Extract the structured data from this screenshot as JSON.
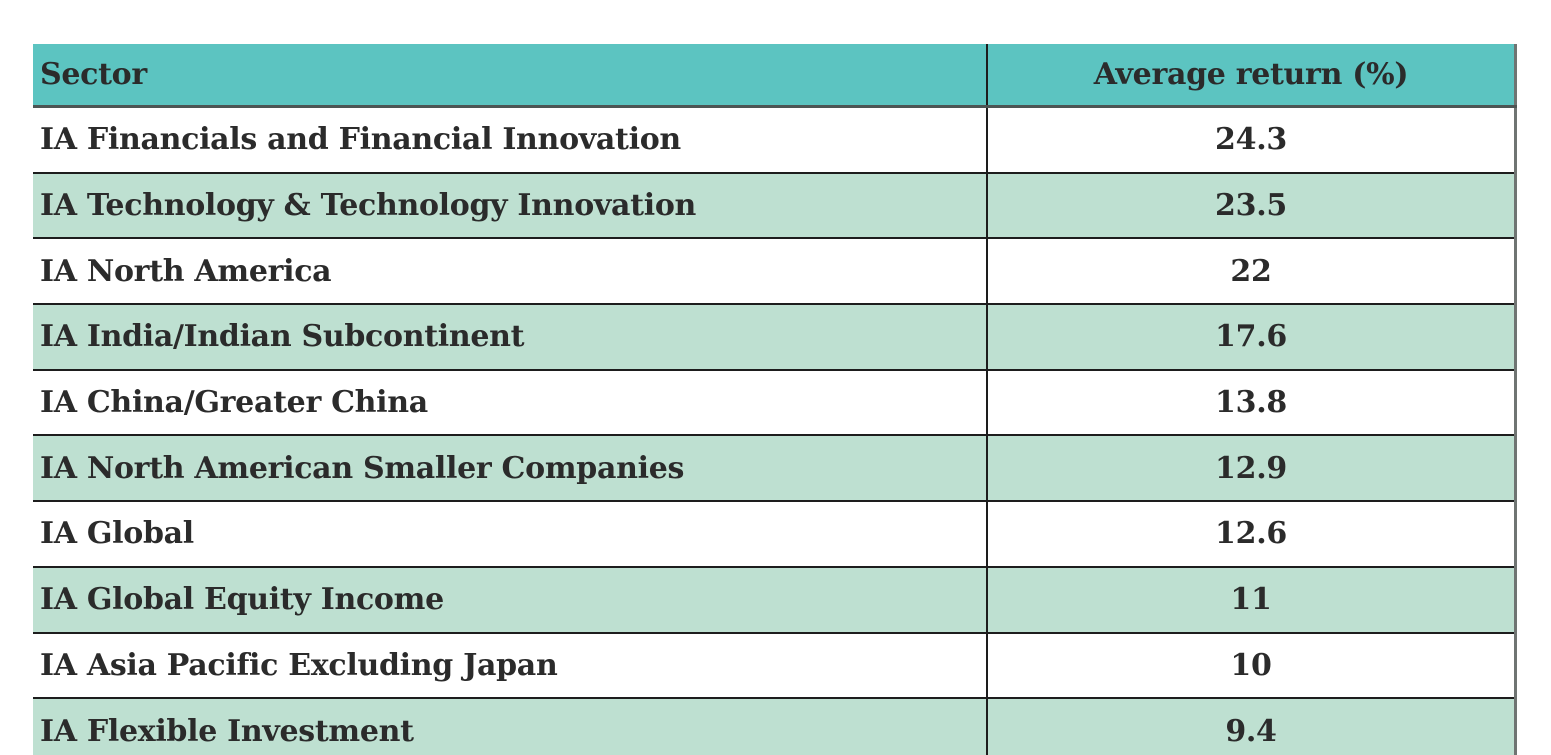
{
  "table": {
    "columns": [
      {
        "label": "Sector"
      },
      {
        "label": "Average return (%)"
      }
    ],
    "rows": [
      {
        "sector": "IA Financials and Financial Innovation",
        "value": "24.3"
      },
      {
        "sector": "IA Technology & Technology Innovation",
        "value": "23.5"
      },
      {
        "sector": "IA North America",
        "value": "22"
      },
      {
        "sector": "IA India/Indian Subcontinent",
        "value": "17.6"
      },
      {
        "sector": "IA China/Greater China",
        "value": "13.8"
      },
      {
        "sector": "IA North American Smaller Companies",
        "value": "12.9"
      },
      {
        "sector": "IA Global",
        "value": "12.6"
      },
      {
        "sector": "IA Global Equity Income",
        "value": "11"
      },
      {
        "sector": "IA Asia Pacific Excluding Japan",
        "value": "10"
      },
      {
        "sector": "IA Flexible Investment",
        "value": "9.4"
      }
    ],
    "colors": {
      "header_bg": "#5cc4c1",
      "row_bg": "#ffffff",
      "row_alt_bg": "#bee0d1",
      "text": "#2b2b2b",
      "grid_line": "#1d1d1d",
      "header_border": "#4d5554",
      "outer_right_border": "#6f7472"
    }
  },
  "chart_data": {
    "type": "table",
    "title": "",
    "columns": [
      "Sector",
      "Average return (%)"
    ],
    "categories": [
      "IA Financials and Financial Innovation",
      "IA Technology & Technology Innovation",
      "IA North America",
      "IA India/Indian Subcontinent",
      "IA China/Greater China",
      "IA North American Smaller Companies",
      "IA Global",
      "IA Global Equity Income",
      "IA Asia Pacific Excluding Japan",
      "IA Flexible Investment"
    ],
    "values": [
      24.3,
      23.5,
      22,
      17.6,
      13.8,
      12.9,
      12.6,
      11,
      10,
      9.4
    ]
  }
}
